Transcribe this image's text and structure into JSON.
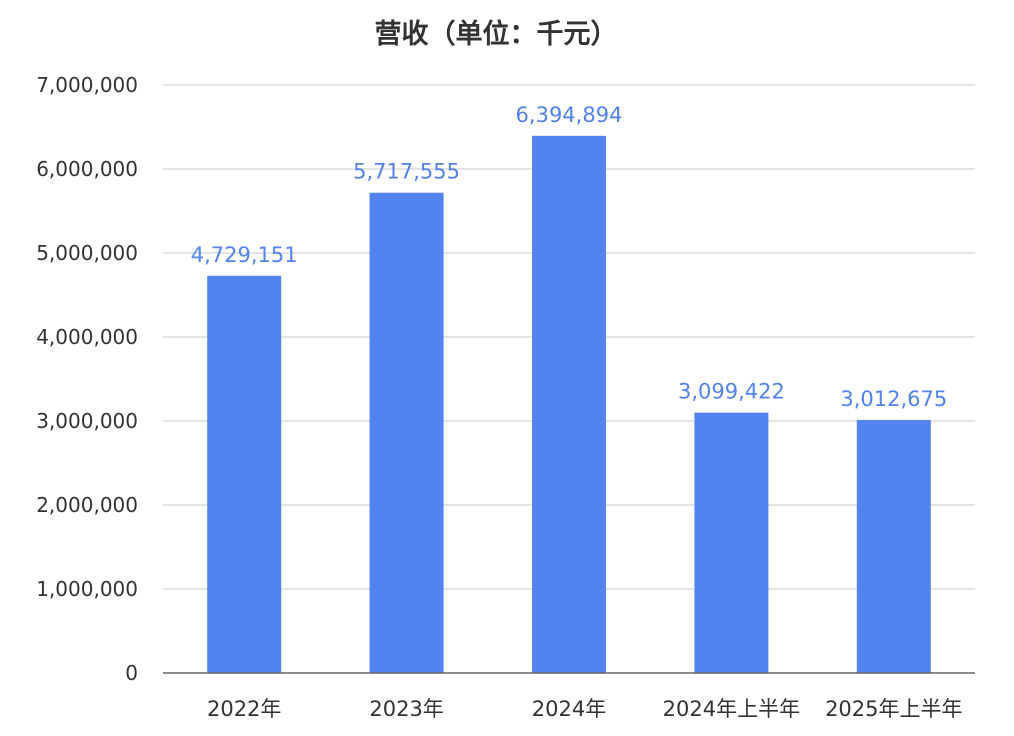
{
  "chart_data": {
    "type": "bar",
    "title": "营收（单位：千元）",
    "xlabel": "",
    "ylabel": "",
    "categories": [
      "2022年",
      "2023年",
      "2024年",
      "2024年上半年",
      "2025年上半年"
    ],
    "values": [
      4729151,
      5717555,
      6394894,
      3099422,
      3012675
    ],
    "data_labels": [
      "4,729,151",
      "5,717,555",
      "6,394,894",
      "3,099,422",
      "3,012,675"
    ],
    "ylim": [
      0,
      7000000
    ],
    "yticks": [
      0,
      1000000,
      2000000,
      3000000,
      4000000,
      5000000,
      6000000,
      7000000
    ],
    "ytick_labels": [
      "0",
      "1,000,000",
      "2,000,000",
      "3,000,000",
      "4,000,000",
      "5,000,000",
      "6,000,000",
      "7,000,000"
    ],
    "grid": true,
    "legend": "none",
    "bar_color": "#5383ef",
    "label_color": "#5383ef"
  }
}
